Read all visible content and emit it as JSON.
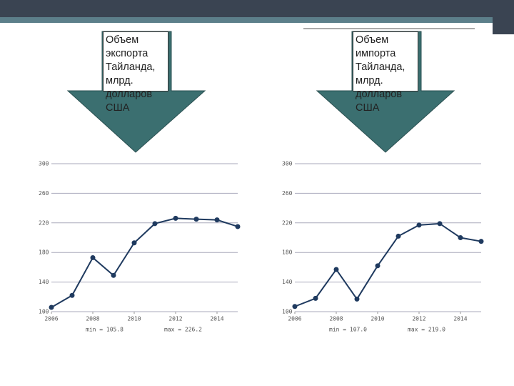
{
  "chart_data": [
    {
      "type": "line",
      "title": "Объем\nэкспорта\nТайланда,\nмлрд.\nдолларов\nСША",
      "x": [
        2006,
        2007,
        2008,
        2009,
        2010,
        2011,
        2012,
        2013,
        2014,
        2015
      ],
      "series": [
        {
          "name": "Экспорт",
          "color": "#1f3a5f",
          "values": [
            105.8,
            122,
            173,
            149,
            193,
            219,
            226.2,
            225,
            224,
            215
          ]
        }
      ],
      "xlim": [
        2006,
        2015
      ],
      "xticks": [
        2006,
        2008,
        2010,
        2012,
        2014
      ],
      "ylim": [
        100,
        300
      ],
      "yticks": [
        100,
        140,
        180,
        220,
        260,
        300
      ],
      "grid": true,
      "annotations": [
        "min = 105.8",
        "max = 226.2"
      ]
    },
    {
      "type": "line",
      "title": "Объем\nимпорта\nТайланда,\nмлрд.\nдолларов\nСША",
      "x": [
        2006,
        2007,
        2008,
        2009,
        2010,
        2011,
        2012,
        2013,
        2014,
        2015
      ],
      "series": [
        {
          "name": "Импорт",
          "color": "#1f3a5f",
          "values": [
            107.0,
            118,
            157,
            117,
            162,
            202,
            217,
            219.0,
            200,
            195
          ]
        }
      ],
      "xlim": [
        2006,
        2015
      ],
      "xticks": [
        2006,
        2008,
        2010,
        2012,
        2014
      ],
      "ylim": [
        100,
        300
      ],
      "yticks": [
        100,
        140,
        180,
        220,
        260,
        300
      ],
      "grid": true,
      "annotations": [
        "min = 107.0",
        "max = 219.0"
      ]
    }
  ]
}
